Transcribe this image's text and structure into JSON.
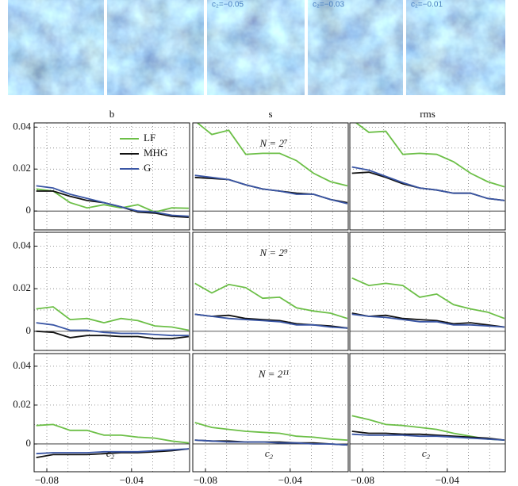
{
  "image_labels": [
    "c₂=−0.05",
    "c₂=−0.03",
    "c₂=−0.01"
  ],
  "chart_data": [
    {
      "type": "line",
      "title": "b",
      "legend": "upper right",
      "x": [
        -0.085,
        -0.077,
        -0.069,
        -0.061,
        -0.053,
        -0.045,
        -0.037,
        -0.029,
        -0.021,
        -0.013
      ],
      "xlim": [
        -0.086,
        -0.0126
      ],
      "ylim": [
        -0.009,
        0.042
      ],
      "xminor": [
        -0.08,
        -0.07,
        -0.06,
        -0.05,
        -0.04,
        -0.03,
        -0.02
      ],
      "yminor": [
        0,
        0.01,
        0.02,
        0.03,
        0.04
      ],
      "yticks": [
        0,
        0.02,
        0.04
      ],
      "series": [
        {
          "name": "LF",
          "color": "#6cbf47",
          "values": [
            0.0105,
            0.0095,
            0.004,
            0.0015,
            0.003,
            0.0015,
            0.003,
            -0.0005,
            0.0015,
            0.0013
          ]
        },
        {
          "name": "MHG",
          "color": "#111111",
          "values": [
            0.0095,
            0.0095,
            0.007,
            0.005,
            0.004,
            0.002,
            -0.0005,
            -0.001,
            -0.0025,
            -0.003
          ]
        },
        {
          "name": "G",
          "color": "#3a56a5",
          "values": [
            0.012,
            0.011,
            0.008,
            0.006,
            0.004,
            0.002,
            0,
            -0.0005,
            -0.002,
            -0.0025
          ]
        }
      ]
    },
    {
      "type": "line",
      "title": "s",
      "annotation": "N = 2⁷",
      "x": [
        -0.085,
        -0.077,
        -0.069,
        -0.061,
        -0.053,
        -0.045,
        -0.037,
        -0.029,
        -0.021,
        -0.013
      ],
      "xlim": [
        -0.086,
        -0.0126
      ],
      "ylim": [
        -0.009,
        0.042
      ],
      "xminor": [
        -0.08,
        -0.07,
        -0.06,
        -0.05,
        -0.04,
        -0.03,
        -0.02
      ],
      "yminor": [
        0,
        0.01,
        0.02,
        0.03,
        0.04
      ],
      "series": [
        {
          "name": "LF",
          "color": "#6cbf47",
          "values": [
            0.043,
            0.0365,
            0.0385,
            0.027,
            0.0275,
            0.0275,
            0.024,
            0.018,
            0.014,
            0.012
          ]
        },
        {
          "name": "MHG",
          "color": "#111111",
          "values": [
            0.016,
            0.0155,
            0.015,
            0.0125,
            0.0105,
            0.0095,
            0.0085,
            0.008,
            0.0055,
            0.004
          ]
        },
        {
          "name": "G",
          "color": "#3a56a5",
          "values": [
            0.017,
            0.016,
            0.015,
            0.0125,
            0.0105,
            0.0095,
            0.008,
            0.008,
            0.0055,
            0.0035
          ]
        }
      ]
    },
    {
      "type": "line",
      "title": "rms",
      "x": [
        -0.085,
        -0.077,
        -0.069,
        -0.061,
        -0.053,
        -0.045,
        -0.037,
        -0.029,
        -0.021,
        -0.013
      ],
      "xlim": [
        -0.086,
        -0.0126
      ],
      "ylim": [
        -0.009,
        0.042
      ],
      "xminor": [
        -0.08,
        -0.07,
        -0.06,
        -0.05,
        -0.04,
        -0.03,
        -0.02
      ],
      "yminor": [
        0,
        0.01,
        0.02,
        0.03,
        0.04
      ],
      "series": [
        {
          "name": "LF",
          "color": "#6cbf47",
          "values": [
            0.0435,
            0.0375,
            0.038,
            0.027,
            0.0275,
            0.027,
            0.0235,
            0.018,
            0.014,
            0.0115
          ]
        },
        {
          "name": "MHG",
          "color": "#111111",
          "values": [
            0.018,
            0.0185,
            0.016,
            0.013,
            0.011,
            0.01,
            0.0085,
            0.0085,
            0.006,
            0.005
          ]
        },
        {
          "name": "G",
          "color": "#3a56a5",
          "values": [
            0.021,
            0.0195,
            0.0165,
            0.0135,
            0.011,
            0.01,
            0.0085,
            0.0085,
            0.006,
            0.005
          ]
        }
      ]
    },
    {
      "type": "line",
      "x": [
        -0.085,
        -0.077,
        -0.069,
        -0.061,
        -0.053,
        -0.045,
        -0.037,
        -0.029,
        -0.021,
        -0.013
      ],
      "xlim": [
        -0.086,
        -0.0126
      ],
      "ylim": [
        -0.009,
        0.0465
      ],
      "xminor": [
        -0.08,
        -0.07,
        -0.06,
        -0.05,
        -0.04,
        -0.03,
        -0.02
      ],
      "yminor": [
        0,
        0.01,
        0.02,
        0.03,
        0.04
      ],
      "yticks": [
        0,
        0.02,
        0.04
      ],
      "series": [
        {
          "name": "LF",
          "color": "#6cbf47",
          "values": [
            0.0105,
            0.0115,
            0.0055,
            0.006,
            0.004,
            0.006,
            0.005,
            0.0025,
            0.002,
            0.0005
          ]
        },
        {
          "name": "MHG",
          "color": "#111111",
          "values": [
            0,
            -0.0005,
            -0.003,
            -0.002,
            -0.002,
            -0.0025,
            -0.0025,
            -0.0035,
            -0.0035,
            -0.0025
          ]
        },
        {
          "name": "G",
          "color": "#3a56a5",
          "values": [
            0.004,
            0.003,
            0.0005,
            0.0005,
            -0.0005,
            -0.001,
            -0.001,
            -0.0015,
            -0.002,
            -0.002
          ]
        }
      ]
    },
    {
      "type": "line",
      "annotation": "N = 2⁹",
      "x": [
        -0.085,
        -0.077,
        -0.069,
        -0.061,
        -0.053,
        -0.045,
        -0.037,
        -0.029,
        -0.021,
        -0.013
      ],
      "xlim": [
        -0.086,
        -0.0126
      ],
      "ylim": [
        -0.009,
        0.0465
      ],
      "xminor": [
        -0.08,
        -0.07,
        -0.06,
        -0.05,
        -0.04,
        -0.03,
        -0.02
      ],
      "yminor": [
        0,
        0.01,
        0.02,
        0.03,
        0.04
      ],
      "series": [
        {
          "name": "LF",
          "color": "#6cbf47",
          "values": [
            0.0225,
            0.018,
            0.022,
            0.0205,
            0.0155,
            0.016,
            0.011,
            0.0095,
            0.0085,
            0.006
          ]
        },
        {
          "name": "MHG",
          "color": "#111111",
          "values": [
            0.008,
            0.007,
            0.0075,
            0.006,
            0.0055,
            0.005,
            0.0035,
            0.003,
            0.0025,
            0.0015
          ]
        },
        {
          "name": "G",
          "color": "#3a56a5",
          "values": [
            0.008,
            0.007,
            0.006,
            0.0055,
            0.005,
            0.0045,
            0.003,
            0.003,
            0.002,
            0.0015
          ]
        }
      ]
    },
    {
      "type": "line",
      "x": [
        -0.085,
        -0.077,
        -0.069,
        -0.061,
        -0.053,
        -0.045,
        -0.037,
        -0.029,
        -0.021,
        -0.013
      ],
      "xlim": [
        -0.086,
        -0.0126
      ],
      "ylim": [
        -0.009,
        0.0465
      ],
      "xminor": [
        -0.08,
        -0.07,
        -0.06,
        -0.05,
        -0.04,
        -0.03,
        -0.02
      ],
      "yminor": [
        0,
        0.01,
        0.02,
        0.03,
        0.04
      ],
      "series": [
        {
          "name": "LF",
          "color": "#6cbf47",
          "values": [
            0.025,
            0.0215,
            0.0225,
            0.0215,
            0.016,
            0.0175,
            0.0125,
            0.0105,
            0.009,
            0.006
          ]
        },
        {
          "name": "MHG",
          "color": "#111111",
          "values": [
            0.0085,
            0.007,
            0.0075,
            0.006,
            0.0055,
            0.005,
            0.0035,
            0.004,
            0.003,
            0.002
          ]
        },
        {
          "name": "G",
          "color": "#3a56a5",
          "values": [
            0.008,
            0.007,
            0.0065,
            0.0055,
            0.0045,
            0.0045,
            0.003,
            0.003,
            0.0025,
            0.002
          ]
        }
      ]
    },
    {
      "type": "line",
      "xlabel": "c₂",
      "x": [
        -0.085,
        -0.077,
        -0.069,
        -0.061,
        -0.053,
        -0.045,
        -0.037,
        -0.029,
        -0.021,
        -0.013
      ],
      "xlim": [
        -0.086,
        -0.0126
      ],
      "ylim": [
        -0.0143,
        0.0465
      ],
      "xminor": [
        -0.08,
        -0.07,
        -0.06,
        -0.05,
        -0.04,
        -0.03,
        -0.02
      ],
      "yminor": [
        0,
        0.01,
        0.02,
        0.03,
        0.04
      ],
      "yticks": [
        0,
        0.02,
        0.04
      ],
      "xticks": [
        {
          "value": -0.08,
          "label": "−0.08"
        },
        {
          "value": -0.04,
          "label": "−0.04"
        }
      ],
      "series": [
        {
          "name": "LF",
          "color": "#6cbf47",
          "values": [
            0.0095,
            0.01,
            0.007,
            0.007,
            0.0045,
            0.0045,
            0.0035,
            0.003,
            0.0015,
            0.0005
          ]
        },
        {
          "name": "MHG",
          "color": "#111111",
          "values": [
            -0.007,
            -0.0055,
            -0.0055,
            -0.0055,
            -0.005,
            -0.0045,
            -0.0045,
            -0.004,
            -0.0035,
            -0.0025
          ]
        },
        {
          "name": "G",
          "color": "#3a56a5",
          "values": [
            -0.005,
            -0.0045,
            -0.0045,
            -0.0045,
            -0.004,
            -0.004,
            -0.004,
            -0.0035,
            -0.003,
            -0.0025
          ]
        }
      ]
    },
    {
      "type": "line",
      "xlabel": "c₂",
      "annotation": "N = 2¹¹",
      "x": [
        -0.085,
        -0.077,
        -0.069,
        -0.061,
        -0.053,
        -0.045,
        -0.037,
        -0.029,
        -0.021,
        -0.013
      ],
      "xlim": [
        -0.086,
        -0.0126
      ],
      "ylim": [
        -0.0143,
        0.0465
      ],
      "xminor": [
        -0.08,
        -0.07,
        -0.06,
        -0.05,
        -0.04,
        -0.03,
        -0.02
      ],
      "yminor": [
        0,
        0.01,
        0.02,
        0.03,
        0.04
      ],
      "xticks": [
        {
          "value": -0.08,
          "label": "−0.08"
        },
        {
          "value": -0.04,
          "label": "−0.04"
        }
      ],
      "series": [
        {
          "name": "LF",
          "color": "#6cbf47",
          "values": [
            0.011,
            0.0085,
            0.0075,
            0.0065,
            0.006,
            0.0055,
            0.004,
            0.0035,
            0.0025,
            0.002
          ]
        },
        {
          "name": "MHG",
          "color": "#111111",
          "values": [
            0.002,
            0.0015,
            0.0015,
            0.001,
            0.001,
            0.001,
            0.0005,
            0.0005,
            0,
            -0.0005
          ]
        },
        {
          "name": "G",
          "color": "#3a56a5",
          "values": [
            0.002,
            0.0015,
            0.001,
            0.001,
            0.001,
            0.0005,
            0.0005,
            0,
            0,
            -0.0005
          ]
        }
      ]
    },
    {
      "type": "line",
      "xlabel": "c₂",
      "x": [
        -0.085,
        -0.077,
        -0.069,
        -0.061,
        -0.053,
        -0.045,
        -0.037,
        -0.029,
        -0.021,
        -0.013
      ],
      "xlim": [
        -0.086,
        -0.0126
      ],
      "ylim": [
        -0.0143,
        0.0465
      ],
      "xminor": [
        -0.08,
        -0.07,
        -0.06,
        -0.05,
        -0.04,
        -0.03,
        -0.02
      ],
      "yminor": [
        0,
        0.01,
        0.02,
        0.03,
        0.04
      ],
      "xticks": [
        {
          "value": -0.08,
          "label": "−0.08"
        },
        {
          "value": -0.04,
          "label": "−0.04"
        }
      ],
      "series": [
        {
          "name": "LF",
          "color": "#6cbf47",
          "values": [
            0.0145,
            0.0125,
            0.01,
            0.0095,
            0.0085,
            0.0075,
            0.0055,
            0.004,
            0.0025,
            0.002
          ]
        },
        {
          "name": "MHG",
          "color": "#111111",
          "values": [
            0.0065,
            0.0055,
            0.0055,
            0.005,
            0.005,
            0.0045,
            0.004,
            0.0035,
            0.003,
            0.002
          ]
        },
        {
          "name": "G",
          "color": "#3a56a5",
          "values": [
            0.005,
            0.0045,
            0.0045,
            0.0045,
            0.004,
            0.004,
            0.0035,
            0.003,
            0.0025,
            0.002
          ]
        }
      ]
    }
  ]
}
